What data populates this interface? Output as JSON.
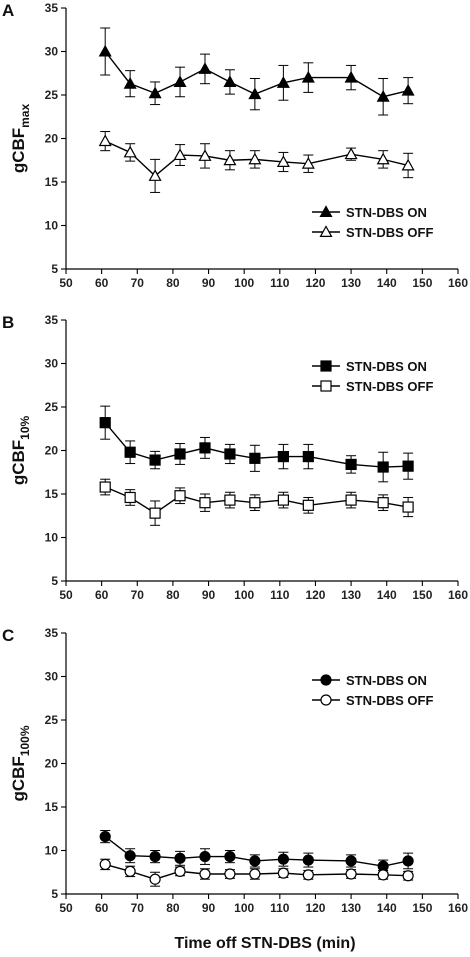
{
  "chart_data": [
    {
      "panel_label": "A",
      "type": "line",
      "ylabel_main": "gCBF",
      "ylabel_sub": "max",
      "ylim": [
        5,
        35
      ],
      "yticks": [
        5,
        10,
        15,
        20,
        25,
        30,
        35
      ],
      "xlim": [
        50,
        160
      ],
      "xticks": [
        50,
        60,
        70,
        80,
        90,
        100,
        110,
        120,
        130,
        140,
        150,
        160
      ],
      "x": [
        61,
        68,
        75,
        82,
        89,
        96,
        103,
        111,
        118,
        130,
        139,
        146
      ],
      "legend_position": "lower-right",
      "series": [
        {
          "name": "STN-DBS ON",
          "marker": "triangle",
          "filled": true,
          "values": [
            30.0,
            26.3,
            25.2,
            26.5,
            28.0,
            26.5,
            25.1,
            26.4,
            27.0,
            27.0,
            24.8,
            25.5
          ],
          "errors": [
            2.7,
            1.5,
            1.3,
            1.7,
            1.7,
            1.4,
            1.8,
            2.0,
            1.7,
            1.4,
            2.1,
            1.5
          ]
        },
        {
          "name": "STN-DBS OFF",
          "marker": "triangle",
          "filled": false,
          "values": [
            19.7,
            18.4,
            15.7,
            18.1,
            18.0,
            17.5,
            17.6,
            17.3,
            17.1,
            18.2,
            17.6,
            16.9
          ],
          "errors": [
            1.1,
            1.0,
            1.9,
            1.2,
            1.4,
            1.1,
            1.0,
            1.1,
            1.0,
            0.7,
            1.0,
            1.4
          ]
        }
      ]
    },
    {
      "panel_label": "B",
      "type": "line",
      "ylabel_main": "gCBF",
      "ylabel_sub": "10%",
      "ylim": [
        5,
        35
      ],
      "yticks": [
        5,
        10,
        15,
        20,
        25,
        30,
        35
      ],
      "xlim": [
        50,
        160
      ],
      "xticks": [
        50,
        60,
        70,
        80,
        90,
        100,
        110,
        120,
        130,
        140,
        150,
        160
      ],
      "x": [
        61,
        68,
        75,
        82,
        89,
        96,
        103,
        111,
        118,
        130,
        139,
        146
      ],
      "legend_position": "upper-right",
      "series": [
        {
          "name": "STN-DBS ON",
          "marker": "square",
          "filled": true,
          "values": [
            23.2,
            19.8,
            18.9,
            19.6,
            20.3,
            19.6,
            19.1,
            19.3,
            19.3,
            18.4,
            18.1,
            18.2
          ],
          "errors": [
            1.9,
            1.3,
            1.0,
            1.2,
            1.2,
            1.1,
            1.5,
            1.4,
            1.4,
            1.0,
            1.7,
            1.5
          ]
        },
        {
          "name": "STN-DBS OFF",
          "marker": "square",
          "filled": false,
          "values": [
            15.8,
            14.6,
            12.8,
            14.8,
            14.0,
            14.3,
            14.0,
            14.3,
            13.7,
            14.3,
            14.0,
            13.5
          ],
          "errors": [
            0.9,
            0.9,
            1.4,
            0.9,
            1.0,
            0.9,
            0.9,
            0.9,
            0.9,
            0.9,
            0.9,
            1.1
          ]
        }
      ]
    },
    {
      "panel_label": "C",
      "type": "line",
      "ylabel_main": "gCBF",
      "ylabel_sub": "100%",
      "ylim": [
        5,
        35
      ],
      "yticks": [
        5,
        10,
        15,
        20,
        25,
        30,
        35
      ],
      "xlim": [
        50,
        160
      ],
      "xticks": [
        50,
        60,
        70,
        80,
        90,
        100,
        110,
        120,
        130,
        140,
        150,
        160
      ],
      "x": [
        61,
        68,
        75,
        82,
        89,
        96,
        103,
        111,
        118,
        130,
        139,
        146
      ],
      "legend_position": "upper-right",
      "series": [
        {
          "name": "STN-DBS ON",
          "marker": "circle",
          "filled": true,
          "values": [
            11.6,
            9.4,
            9.3,
            9.1,
            9.3,
            9.3,
            8.8,
            9.0,
            8.9,
            8.8,
            8.2,
            8.8
          ],
          "errors": [
            0.7,
            0.8,
            0.7,
            0.8,
            0.9,
            0.7,
            0.7,
            0.8,
            0.8,
            0.7,
            0.7,
            0.9
          ]
        },
        {
          "name": "STN-DBS OFF",
          "marker": "circle",
          "filled": false,
          "values": [
            8.4,
            7.6,
            6.7,
            7.6,
            7.3,
            7.3,
            7.3,
            7.4,
            7.2,
            7.3,
            7.2,
            7.1
          ],
          "errors": [
            0.6,
            0.6,
            0.8,
            0.5,
            0.6,
            0.5,
            0.6,
            0.5,
            0.5,
            0.5,
            0.5,
            0.5
          ]
        }
      ]
    }
  ],
  "xlabel": "Time off STN-DBS (min)"
}
